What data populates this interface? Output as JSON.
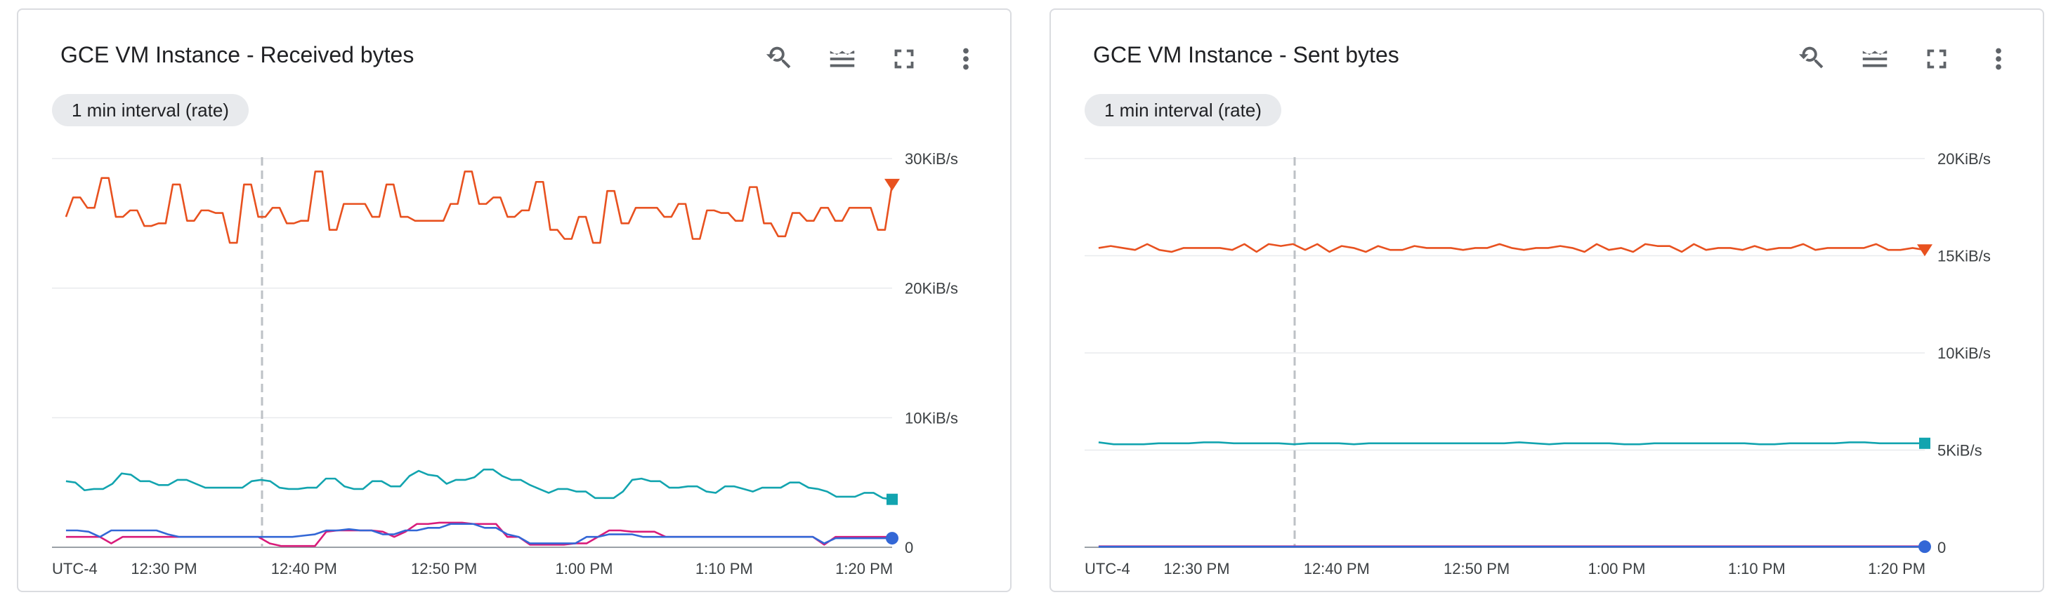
{
  "charts": [
    {
      "title": "GCE VM Instance - Received bytes",
      "chip": "1 min interval (rate)",
      "timezone": "UTC-4",
      "icons": [
        "zoom-reset-icon",
        "legend-toggle-icon",
        "fullscreen-icon",
        "more-vert-icon"
      ]
    },
    {
      "title": "GCE VM Instance - Sent bytes",
      "chip": "1 min interval (rate)",
      "timezone": "UTC-4",
      "icons": [
        "zoom-reset-icon",
        "legend-toggle-icon",
        "fullscreen-icon",
        "more-vert-icon"
      ]
    }
  ],
  "chart_data": [
    {
      "type": "line",
      "title": "GCE VM Instance - Received bytes",
      "x_ticks": [
        "12:30 PM",
        "12:40 PM",
        "12:50 PM",
        "1:00 PM",
        "1:10 PM",
        "1:20 PM"
      ],
      "y_ticks": [
        "0",
        "10KiB/s",
        "20KiB/s",
        "30KiB/s"
      ],
      "ylim": [
        0,
        30
      ],
      "y_unit": "KiB/s",
      "xlim": [
        "12:22 PM",
        "1:22 PM"
      ],
      "hover_line": "12:37 PM",
      "grid": true,
      "series": [
        {
          "color": "#e8511f",
          "marker": "triangle",
          "values": [
            25.5,
            27,
            27,
            26.2,
            26.2,
            28.5,
            28.5,
            25.5,
            25.5,
            26,
            26,
            24.8,
            24.8,
            25,
            25,
            28,
            28,
            25.2,
            25.2,
            26,
            26,
            25.8,
            25.8,
            23.5,
            23.5,
            28,
            28,
            25.5,
            25.5,
            26.2,
            26.2,
            25,
            25,
            25.2,
            25.2,
            29,
            29,
            24.5,
            24.5,
            26.5,
            26.5,
            26.5,
            26.5,
            25.5,
            25.5,
            28,
            28,
            25.5,
            25.5,
            25.2,
            25.2,
            25.2,
            25.2,
            25.2,
            26.5,
            26.5,
            29,
            29,
            26.5,
            26.5,
            27,
            27,
            25.5,
            25.5,
            26,
            26,
            28.2,
            28.2,
            24.5,
            24.5,
            23.8,
            23.8,
            25.5,
            25.5,
            23.5,
            23.5,
            27.5,
            27.5,
            25,
            25,
            26.2,
            26.2,
            26.2,
            26.2,
            25.5,
            25.5,
            26.5,
            26.5,
            23.8,
            23.8,
            26,
            26,
            25.8,
            25.8,
            25.2,
            25.2,
            27.8,
            27.8,
            25,
            25,
            24,
            24,
            25.8,
            25.8,
            25.2,
            25.2,
            26.2,
            26.2,
            25.2,
            25.2,
            26.2,
            26.2,
            26.2,
            26.2,
            24.5,
            24.5,
            28
          ]
        },
        {
          "color": "#12a4af",
          "marker": "square",
          "values": [
            5.1,
            5,
            4.4,
            4.5,
            4.5,
            4.9,
            5.7,
            5.6,
            5.1,
            5.1,
            4.8,
            4.8,
            5.2,
            5.2,
            4.9,
            4.6,
            4.6,
            4.6,
            4.6,
            4.6,
            5.1,
            5.2,
            5.1,
            4.6,
            4.5,
            4.5,
            4.6,
            4.6,
            5.3,
            5.3,
            4.7,
            4.5,
            4.5,
            5.1,
            5.1,
            4.7,
            4.7,
            5.5,
            5.9,
            5.6,
            5.5,
            4.9,
            5.2,
            5.2,
            5.4,
            6,
            6,
            5.5,
            5.2,
            5.2,
            4.8,
            4.5,
            4.2,
            4.5,
            4.5,
            4.3,
            4.3,
            3.8,
            3.8,
            3.8,
            4.3,
            5.2,
            5.3,
            5.1,
            5.1,
            4.6,
            4.6,
            4.7,
            4.7,
            4.3,
            4.2,
            4.7,
            4.7,
            4.5,
            4.3,
            4.6,
            4.6,
            4.6,
            5,
            5,
            4.6,
            4.5,
            4.3,
            3.9,
            3.9,
            3.9,
            4.2,
            4.2,
            3.8,
            3.7
          ]
        },
        {
          "color": "#d81b7a",
          "marker": "none",
          "values": [
            0.8,
            0.8,
            0.8,
            0.8,
            0.3,
            0.8,
            0.8,
            0.8,
            0.8,
            0.8,
            0.8,
            0.8,
            0.8,
            0.8,
            0.8,
            0.8,
            0.8,
            0.8,
            0.3,
            0.1,
            0.1,
            0.1,
            0.1,
            1.2,
            1.3,
            1.3,
            1.3,
            1.3,
            1.2,
            0.8,
            1.2,
            1.8,
            1.8,
            1.9,
            1.9,
            1.9,
            1.8,
            1.8,
            1.8,
            0.8,
            0.8,
            0.2,
            0.2,
            0.2,
            0.2,
            0.3,
            0.3,
            0.8,
            1.3,
            1.3,
            1.2,
            1.2,
            1.2,
            0.8,
            0.8,
            0.8,
            0.8,
            0.8,
            0.8,
            0.8,
            0.8,
            0.8,
            0.8,
            0.8,
            0.8,
            0.8,
            0.8,
            0.2,
            0.8,
            0.8,
            0.8,
            0.8,
            0.8,
            0.8
          ]
        },
        {
          "color": "#3367d6",
          "marker": "circle",
          "values": [
            1.3,
            1.3,
            1.2,
            0.8,
            1.3,
            1.3,
            1.3,
            1.3,
            1.3,
            1,
            0.8,
            0.8,
            0.8,
            0.8,
            0.8,
            0.8,
            0.8,
            0.8,
            0.8,
            0.8,
            0.8,
            0.9,
            1,
            1.3,
            1.3,
            1.4,
            1.3,
            1.3,
            1,
            1,
            1.3,
            1.3,
            1.5,
            1.5,
            1.8,
            1.8,
            1.8,
            1.5,
            1.5,
            1,
            0.8,
            0.3,
            0.3,
            0.3,
            0.3,
            0.3,
            0.8,
            0.8,
            1,
            1,
            1,
            0.8,
            0.8,
            0.8,
            0.8,
            0.8,
            0.8,
            0.8,
            0.8,
            0.8,
            0.8,
            0.8,
            0.8,
            0.8,
            0.8,
            0.8,
            0.8,
            0.3,
            0.7,
            0.7,
            0.7,
            0.7,
            0.7,
            0.7
          ]
        }
      ]
    },
    {
      "type": "line",
      "title": "GCE VM Instance - Sent bytes",
      "x_ticks": [
        "12:30 PM",
        "12:40 PM",
        "12:50 PM",
        "1:00 PM",
        "1:10 PM",
        "1:20 PM"
      ],
      "y_ticks": [
        "0",
        "5KiB/s",
        "10KiB/s",
        "15KiB/s",
        "20KiB/s"
      ],
      "ylim": [
        0,
        20
      ],
      "y_unit": "KiB/s",
      "xlim": [
        "12:22 PM",
        "1:22 PM"
      ],
      "hover_line": "12:37 PM",
      "grid": true,
      "series": [
        {
          "color": "#e8511f",
          "marker": "triangle",
          "values": [
            15.4,
            15.5,
            15.4,
            15.3,
            15.6,
            15.3,
            15.2,
            15.4,
            15.4,
            15.4,
            15.4,
            15.3,
            15.6,
            15.2,
            15.6,
            15.5,
            15.6,
            15.3,
            15.6,
            15.2,
            15.5,
            15.4,
            15.2,
            15.5,
            15.3,
            15.3,
            15.5,
            15.4,
            15.4,
            15.4,
            15.3,
            15.4,
            15.4,
            15.6,
            15.4,
            15.3,
            15.4,
            15.4,
            15.5,
            15.4,
            15.2,
            15.6,
            15.3,
            15.4,
            15.2,
            15.6,
            15.5,
            15.5,
            15.2,
            15.6,
            15.3,
            15.4,
            15.4,
            15.3,
            15.5,
            15.3,
            15.4,
            15.4,
            15.6,
            15.3,
            15.4,
            15.4,
            15.4,
            15.4,
            15.6,
            15.3,
            15.3,
            15.4,
            15.3
          ]
        },
        {
          "color": "#12a4af",
          "marker": "square",
          "values": [
            5.4,
            5.3,
            5.3,
            5.3,
            5.35,
            5.35,
            5.35,
            5.4,
            5.4,
            5.35,
            5.35,
            5.35,
            5.35,
            5.3,
            5.35,
            5.35,
            5.35,
            5.3,
            5.35,
            5.35,
            5.35,
            5.35,
            5.35,
            5.35,
            5.35,
            5.35,
            5.35,
            5.35,
            5.4,
            5.35,
            5.3,
            5.35,
            5.35,
            5.35,
            5.35,
            5.3,
            5.3,
            5.35,
            5.35,
            5.35,
            5.35,
            5.35,
            5.35,
            5.35,
            5.3,
            5.3,
            5.35,
            5.35,
            5.35,
            5.35,
            5.4,
            5.4,
            5.35,
            5.35,
            5.35,
            5.35
          ]
        },
        {
          "color": "#d81b7a",
          "marker": "none",
          "values": [
            0.05,
            0.05,
            0.05,
            0.05,
            0.05,
            0.05,
            0.05,
            0.05,
            0.05,
            0.05
          ]
        },
        {
          "color": "#3367d6",
          "marker": "circle",
          "values": [
            0.03,
            0.03,
            0.03,
            0.03,
            0.03,
            0.03,
            0.03,
            0.03,
            0.03,
            0.03
          ]
        }
      ]
    }
  ]
}
